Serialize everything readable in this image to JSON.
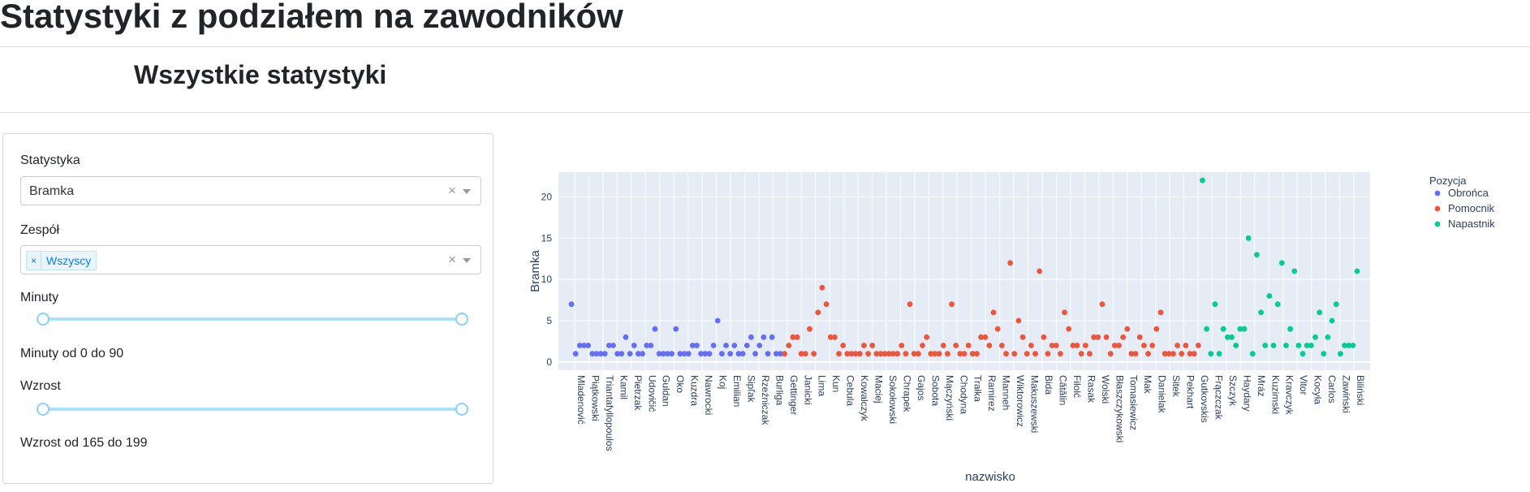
{
  "page_title": "Statystyki z podziałem na zawodników",
  "section_title": "Wszystkie statystyki",
  "filters": {
    "stat_label": "Statystyka",
    "stat_value": "Bramka",
    "team_label": "Zespół",
    "team_tag": "Wszyscy",
    "tag_remove": "×",
    "clear_symbol": "×",
    "minutes_label": "Minuty",
    "minutes_range": [
      0,
      90
    ],
    "minutes_text": "Minuty od 0 do 90",
    "height_label": "Wzrost",
    "height_range": [
      165,
      199
    ],
    "height_text": "Wzrost od 165 do 199"
  },
  "colors": {
    "defender": "#636efa",
    "midfielder": "#ef553b",
    "forward": "#00cc96",
    "plot_bg": "#e5ecf6",
    "axis_text": "#2a3f5f"
  },
  "chart_data": {
    "type": "scatter",
    "xlabel": "nazwisko",
    "ylabel": "Bramka",
    "ylim": [
      -1,
      23
    ],
    "yticks": [
      0,
      5,
      10,
      15,
      20
    ],
    "legend_title": "Pozycja",
    "legend_position": "top-right",
    "x_ticks": [
      "Mladenović",
      "Piątkowski",
      "Triantafyllopoulos",
      "Kamil",
      "Pietrzak",
      "Udovičić",
      "Guldan",
      "Oko",
      "Kuzdra",
      "Nawrocki",
      "Koj",
      "Emilian",
      "Sipľak",
      "Rzeźniczak",
      "Burliga",
      "Gettinger",
      "Janicki",
      "Lima",
      "Kun",
      "Cebula",
      "Kowalczyk",
      "Maciej",
      "Sokołowski",
      "Chrapek",
      "Gajos",
      "Sobota",
      "Mączyński",
      "Chodyna",
      "Trałka",
      "Ramirez",
      "Manneh",
      "Wiktorowicz",
      "Makuszewski",
      "Bida",
      "Cătălin",
      "Filolć",
      "Rasak",
      "Wolski",
      "Błaszczykowski",
      "Tomasiewicz",
      "Mak",
      "Danielak",
      "Sitek",
      "Pekhart",
      "Gutkovskis",
      "Frączczak",
      "Szczyk",
      "Haydary",
      "Mráz",
      "Kuzimski",
      "Kravczyk",
      "Vitor",
      "Kocyła",
      "Carlos",
      "Zawiński",
      "Biliński"
    ],
    "series": [
      {
        "name": "Obrońca",
        "values": [
          7,
          1,
          2,
          2,
          2,
          1,
          1,
          1,
          1,
          2,
          2,
          1,
          1,
          3,
          1,
          2,
          1,
          1,
          2,
          2,
          4,
          1,
          1,
          1,
          1,
          4,
          1,
          1,
          1,
          2,
          2,
          1,
          1,
          1,
          2,
          5,
          1,
          2,
          1,
          2,
          1,
          1,
          2,
          3,
          1,
          2,
          3,
          1,
          3,
          1,
          1
        ]
      },
      {
        "name": "Pomocnik",
        "values": [
          1,
          2,
          3,
          3,
          1,
          1,
          4,
          1,
          6,
          9,
          7,
          3,
          3,
          1,
          2,
          1,
          1,
          1,
          1,
          2,
          1,
          2,
          1,
          1,
          1,
          1,
          1,
          1,
          2,
          1,
          7,
          1,
          1,
          2,
          3,
          1,
          1,
          1,
          2,
          1,
          7,
          2,
          1,
          1,
          2,
          1,
          1,
          3,
          3,
          2,
          6,
          4,
          2,
          1,
          12,
          1,
          5,
          3,
          1,
          2,
          1,
          11,
          3,
          1,
          2,
          2,
          1,
          6,
          4,
          2,
          2,
          1,
          2,
          1,
          3,
          3,
          7,
          3,
          1,
          2,
          2,
          3,
          4,
          1,
          1,
          3,
          2,
          1,
          2,
          4,
          6,
          1,
          1,
          1,
          2,
          1,
          2,
          1,
          1,
          2
        ]
      },
      {
        "name": "Napastnik",
        "values": [
          22,
          4,
          1,
          7,
          1,
          4,
          3,
          3,
          2,
          4,
          4,
          15,
          1,
          13,
          6,
          2,
          8,
          2,
          7,
          12,
          2,
          4,
          11,
          2,
          1,
          2,
          2,
          3,
          6,
          1,
          3,
          5,
          7,
          1,
          2,
          2,
          2,
          11
        ]
      }
    ]
  }
}
